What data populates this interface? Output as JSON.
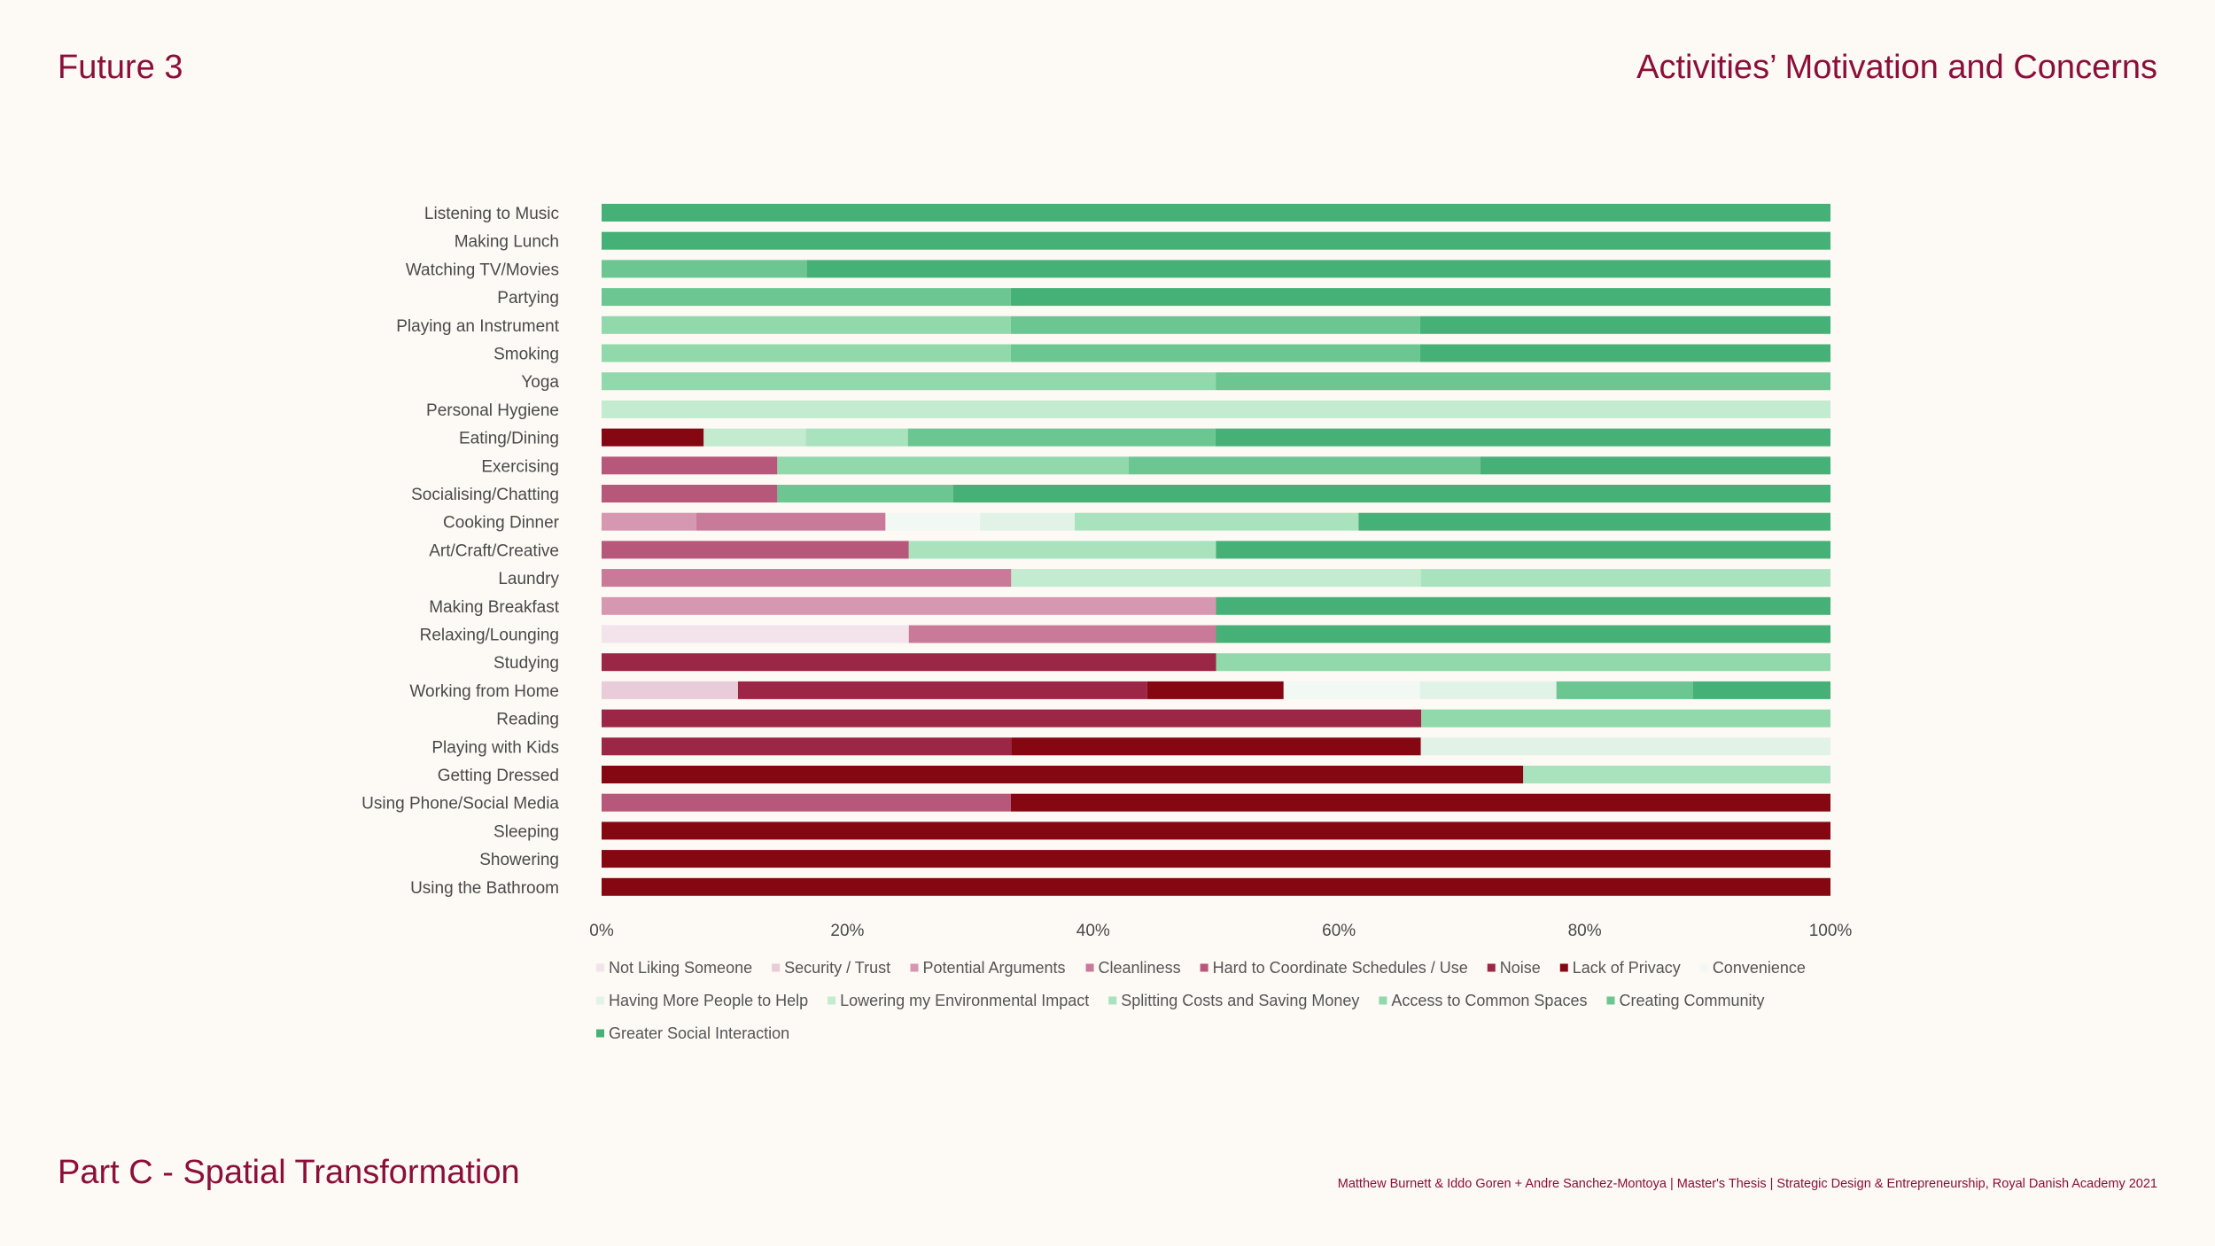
{
  "header": {
    "left_title": "Future 3",
    "right_title": "Activities’ Motivation and Concerns"
  },
  "footer": {
    "left_title": "Part C - Spatial Transformation",
    "credits": "Matthew Burnett & Iddo Goren +  Andre Sanchez-Montoya | Master's Thesis | Strategic Design & Entrepreneurship, Royal Danish Academy 2021"
  },
  "chart_data": {
    "type": "bar",
    "orientation": "horizontal",
    "stacked": "percent",
    "xlim": [
      0,
      100
    ],
    "xticks": [
      "0%",
      "20%",
      "40%",
      "60%",
      "80%",
      "100%"
    ],
    "legend_position": "bottom",
    "categories": [
      "Listening to Music",
      "Making Lunch",
      "Watching TV/Movies",
      "Partying",
      "Playing an Instrument",
      "Smoking",
      "Yoga",
      "Personal Hygiene",
      "Eating/Dining",
      "Exercising",
      "Socialising/Chatting",
      "Cooking Dinner",
      "Art/Craft/Creative",
      "Laundry",
      "Making Breakfast",
      "Relaxing/Lounging",
      "Studying",
      "Working from Home",
      "Reading",
      "Playing with Kids",
      "Getting Dressed",
      "Using Phone/Social Media",
      "Sleeping",
      "Showering",
      "Using the Bathroom"
    ],
    "series": [
      {
        "name": "Not Liking Someone",
        "color": "#f3e3ea",
        "values": [
          0,
          0,
          0,
          0,
          0,
          0,
          0,
          0,
          0,
          0,
          0,
          0,
          0,
          0,
          0,
          25,
          0,
          0,
          0,
          0,
          0,
          0,
          0,
          0,
          0
        ]
      },
      {
        "name": "Security / Trust",
        "color": "#eacbd9",
        "values": [
          0,
          0,
          0,
          0,
          0,
          0,
          0,
          0,
          0,
          0,
          0,
          0,
          0,
          0,
          0,
          0,
          0,
          11.1,
          0,
          0,
          0,
          0,
          0,
          0,
          0
        ]
      },
      {
        "name": "Potential Arguments",
        "color": "#d697b1",
        "values": [
          0,
          0,
          0,
          0,
          0,
          0,
          0,
          0,
          0,
          0,
          0,
          7.7,
          0,
          0,
          50,
          0,
          0,
          0,
          0,
          0,
          0,
          0,
          0,
          0,
          0
        ]
      },
      {
        "name": "Cleanliness",
        "color": "#c97a98",
        "values": [
          0,
          0,
          0,
          0,
          0,
          0,
          0,
          0,
          0,
          0,
          0,
          15.4,
          0,
          33.3,
          0,
          25,
          0,
          0,
          0,
          0,
          0,
          0,
          0,
          0,
          0
        ]
      },
      {
        "name": "Hard to Coordinate Schedules / Use",
        "color": "#b7577a",
        "values": [
          0,
          0,
          0,
          0,
          0,
          0,
          0,
          0,
          0,
          14.3,
          14.3,
          0,
          25,
          0,
          0,
          0,
          0,
          0,
          0,
          0,
          0,
          33.3,
          0,
          0,
          0
        ]
      },
      {
        "name": "Noise",
        "color": "#9c2646",
        "values": [
          0,
          0,
          0,
          0,
          0,
          0,
          0,
          0,
          0,
          0,
          0,
          0,
          0,
          0,
          0,
          0,
          50,
          33.3,
          66.7,
          33.3,
          0,
          0,
          0,
          0,
          0
        ]
      },
      {
        "name": "Lack of Privacy",
        "color": "#850712",
        "values": [
          0,
          0,
          0,
          0,
          0,
          0,
          0,
          0,
          8.3,
          0,
          0,
          0,
          0,
          0,
          0,
          0,
          0,
          11.1,
          0,
          33.3,
          75,
          66.7,
          100,
          100,
          100
        ]
      },
      {
        "name": "Convenience",
        "color": "#f2f8f3",
        "values": [
          0,
          0,
          0,
          0,
          0,
          0,
          0,
          0,
          0,
          0,
          0,
          7.7,
          0,
          0,
          0,
          0,
          0,
          11.1,
          0,
          0,
          0,
          0,
          0,
          0,
          0
        ]
      },
      {
        "name": "Having More People to Help",
        "color": "#e1f3e6",
        "values": [
          0,
          0,
          0,
          0,
          0,
          0,
          0,
          0,
          0,
          0,
          0,
          7.7,
          0,
          0,
          0,
          0,
          0,
          11.1,
          0,
          33.3,
          0,
          0,
          0,
          0,
          0
        ]
      },
      {
        "name": "Lowering my Environmental Impact",
        "color": "#c2ebd0",
        "values": [
          0,
          0,
          0,
          0,
          0,
          0,
          0,
          100,
          8.3,
          0,
          0,
          0,
          0,
          33.3,
          0,
          0,
          0,
          0,
          0,
          0,
          0,
          0,
          0,
          0,
          0
        ]
      },
      {
        "name": "Splitting Costs and Saving Money",
        "color": "#a9e3be",
        "values": [
          0,
          0,
          0,
          0,
          0,
          0,
          0,
          0,
          8.3,
          0,
          0,
          23.1,
          25,
          33.3,
          0,
          0,
          0,
          0,
          0,
          0,
          25,
          0,
          0,
          0,
          0
        ]
      },
      {
        "name": "Access to Common Spaces",
        "color": "#91d8ab",
        "values": [
          0,
          0,
          0,
          0,
          33.3,
          33.3,
          50,
          0,
          0,
          28.6,
          0,
          0,
          0,
          0,
          0,
          0,
          50,
          0,
          33.3,
          0,
          0,
          0,
          0,
          0,
          0
        ]
      },
      {
        "name": "Creating Community",
        "color": "#6bc691",
        "values": [
          0,
          0,
          16.7,
          33.3,
          33.3,
          33.3,
          50,
          0,
          25,
          28.6,
          14.3,
          0,
          0,
          0,
          0,
          0,
          0,
          11.1,
          0,
          0,
          0,
          0,
          0,
          0,
          0
        ]
      },
      {
        "name": "Greater Social Interaction",
        "color": "#45b176",
        "values": [
          100,
          100,
          83.3,
          66.7,
          33.4,
          33.4,
          0,
          0,
          50,
          28.5,
          71.4,
          38.4,
          50,
          0,
          50,
          50,
          0,
          11.2,
          0,
          0,
          0,
          0,
          0,
          0,
          0
        ]
      }
    ]
  }
}
